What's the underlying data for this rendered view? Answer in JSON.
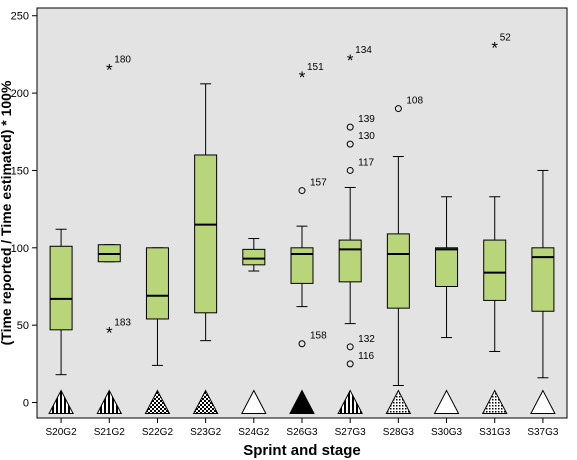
{
  "chart_data": {
    "type": "boxplot",
    "title": "",
    "xlabel": "Sprint and stage",
    "ylabel": "(Time reported / Time estimated) * 100%",
    "ylim": [
      -10,
      255
    ],
    "yticks": [
      0,
      50,
      100,
      150,
      200,
      250
    ],
    "plot_background": "#e3e3e3",
    "box_color": "#b9d57a",
    "grid": false,
    "categories": [
      "S20G2",
      "S21G2",
      "S22G2",
      "S23G2",
      "S24G2",
      "S26G3",
      "S27G3",
      "S28G3",
      "S30G3",
      "S31G3",
      "S37G3"
    ],
    "boxes": [
      {
        "category": "S20G2",
        "min": 18,
        "q1": 47,
        "median": 67,
        "q3": 101,
        "max": 112
      },
      {
        "category": "S21G2",
        "min": 91,
        "q1": 91,
        "median": 96,
        "q3": 102,
        "max": 102
      },
      {
        "category": "S22G2",
        "min": 24,
        "q1": 54,
        "median": 69,
        "q3": 100,
        "max": 100
      },
      {
        "category": "S23G2",
        "min": 40,
        "q1": 58,
        "median": 115,
        "q3": 160,
        "max": 206
      },
      {
        "category": "S24G2",
        "min": 85,
        "q1": 89,
        "median": 93,
        "q3": 99,
        "max": 106
      },
      {
        "category": "S26G3",
        "min": 62,
        "q1": 77,
        "median": 96,
        "q3": 100,
        "max": 114
      },
      {
        "category": "S27G3",
        "min": 51,
        "q1": 78,
        "median": 99,
        "q3": 105,
        "max": 139
      },
      {
        "category": "S28G3",
        "min": 11,
        "q1": 61,
        "median": 96,
        "q3": 109,
        "max": 159
      },
      {
        "category": "S30G3",
        "min": 42,
        "q1": 75,
        "median": 99,
        "q3": 100,
        "max": 133
      },
      {
        "category": "S31G3",
        "min": 33,
        "q1": 66,
        "median": 84,
        "q3": 105,
        "max": 133
      },
      {
        "category": "S37G3",
        "min": 16,
        "q1": 59,
        "median": 94,
        "q3": 100,
        "max": 150
      }
    ],
    "outliers": [
      {
        "category": "S21G2",
        "value": 216,
        "label": "180",
        "kind": "extreme"
      },
      {
        "category": "S21G2",
        "value": 46,
        "label": "183",
        "kind": "extreme"
      },
      {
        "category": "S26G3",
        "value": 211,
        "label": "151",
        "kind": "extreme"
      },
      {
        "category": "S26G3",
        "value": 137,
        "label": "157",
        "kind": "outlier"
      },
      {
        "category": "S26G3",
        "value": 38,
        "label": "158",
        "kind": "outlier"
      },
      {
        "category": "S27G3",
        "value": 222,
        "label": "134",
        "kind": "extreme"
      },
      {
        "category": "S27G3",
        "value": 178,
        "label": "139",
        "kind": "outlier"
      },
      {
        "category": "S27G3",
        "value": 167,
        "label": "130",
        "kind": "outlier"
      },
      {
        "category": "S27G3",
        "value": 150,
        "label": "117",
        "kind": "outlier"
      },
      {
        "category": "S27G3",
        "value": 36,
        "label": "132",
        "kind": "outlier"
      },
      {
        "category": "S27G3",
        "value": 25,
        "label": "116",
        "kind": "outlier"
      },
      {
        "category": "S28G3",
        "value": 190,
        "label": "108",
        "kind": "outlier"
      },
      {
        "category": "S31G3",
        "value": 230,
        "label": "52",
        "kind": "extreme"
      }
    ],
    "markers": [
      {
        "category": "S20G2",
        "pattern": "vertical-stripes"
      },
      {
        "category": "S21G2",
        "pattern": "vertical-stripes"
      },
      {
        "category": "S22G2",
        "pattern": "checker"
      },
      {
        "category": "S23G2",
        "pattern": "checker"
      },
      {
        "category": "S24G2",
        "pattern": "empty"
      },
      {
        "category": "S26G3",
        "pattern": "solid"
      },
      {
        "category": "S27G3",
        "pattern": "vertical-stripes"
      },
      {
        "category": "S28G3",
        "pattern": "dots"
      },
      {
        "category": "S30G3",
        "pattern": "empty"
      },
      {
        "category": "S31G3",
        "pattern": "dots"
      },
      {
        "category": "S37G3",
        "pattern": "empty"
      }
    ],
    "marker_value": 0
  }
}
